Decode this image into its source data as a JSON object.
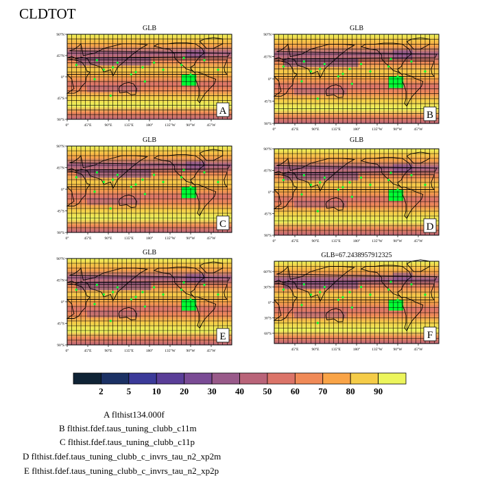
{
  "title": "CLDTOT",
  "panels": [
    {
      "id": "A",
      "title": "GLB",
      "letter": "A",
      "lat_ticks": [
        "90°N",
        "45°N",
        "0°",
        "45°S",
        "90°S"
      ],
      "lon_ticks": [
        "0°",
        "45°E",
        "90°E",
        "135°E",
        "180°",
        "135°W",
        "90°W",
        "45°W"
      ]
    },
    {
      "id": "B",
      "title": "GLB",
      "letter": "B",
      "lat_ticks": [
        "90°N",
        "45°N",
        "0°",
        "45°S",
        "90°S"
      ],
      "lon_ticks": [
        "0°",
        "45°E",
        "90°E",
        "135°E",
        "180°",
        "135°W",
        "90°W",
        "45°W"
      ]
    },
    {
      "id": "C",
      "title": "GLB",
      "letter": "C",
      "lat_ticks": [
        "90°N",
        "45°N",
        "0°",
        "45°S",
        "90°S"
      ],
      "lon_ticks": [
        "0°",
        "45°E",
        "90°E",
        "135°E",
        "180°",
        "135°W",
        "90°W",
        "45°W"
      ]
    },
    {
      "id": "D",
      "title": "GLB",
      "letter": "D",
      "lat_ticks": [
        "90°N",
        "45°N",
        "0°",
        "45°S",
        "90°S"
      ],
      "lon_ticks": [
        "0°",
        "45°E",
        "90°E",
        "135°E",
        "180°",
        "135°W",
        "90°W",
        "45°W"
      ]
    },
    {
      "id": "E",
      "title": "GLB",
      "letter": "E",
      "lat_ticks": [
        "90°N",
        "45°N",
        "0°",
        "45°S",
        "90°S"
      ],
      "lon_ticks": [
        "0°",
        "45°E",
        "90°E",
        "135°E",
        "180°",
        "135°W",
        "90°W",
        "45°W"
      ]
    },
    {
      "id": "F",
      "title": "GLB=67.2438957912325",
      "letter": "F",
      "lat_ticks": [
        "60°N",
        "30°N",
        "0°",
        "30°S",
        "60°S"
      ],
      "lon_ticks": [
        "45°E",
        "90°E",
        "135°E",
        "180°",
        "135°W",
        "90°W",
        "45°W"
      ]
    }
  ],
  "colorbar": {
    "labels": [
      "2",
      "5",
      "10",
      "20",
      "30",
      "40",
      "50",
      "60",
      "70",
      "80",
      "90"
    ],
    "colors": [
      "#0f2335",
      "#1b3164",
      "#3b3a99",
      "#5a3e98",
      "#7a4b95",
      "#995a8a",
      "#b96479",
      "#db7469",
      "#f08a57",
      "#f9a447",
      "#f5cc48",
      "#ecf55c"
    ]
  },
  "legend": [
    "A  flthist134.000f",
    "B  flthist.fdef.taus_tuning_clubb_c11m",
    "C  flthist.fdef.taus_tuning_clubb_c11p",
    "D  flthist.fdef.taus_tuning_clubb_c_invrs_tau_n2_xp2m",
    "E  flthist.fdef.taus_tuning_clubb_c_invrs_tau_n2_xp2p"
  ],
  "chart_data": {
    "type": "heatmap",
    "variable": "CLDTOT",
    "panels": [
      "A",
      "B",
      "C",
      "D",
      "E",
      "F"
    ],
    "global_mean_F": 67.2438957912325,
    "color_levels": [
      2,
      5,
      10,
      20,
      30,
      40,
      50,
      60,
      70,
      80,
      90
    ],
    "x_range_deg": [
      0,
      360
    ],
    "y_range_deg": [
      -90,
      90
    ],
    "F_y_range_deg": [
      -80,
      80
    ],
    "grid": true
  }
}
